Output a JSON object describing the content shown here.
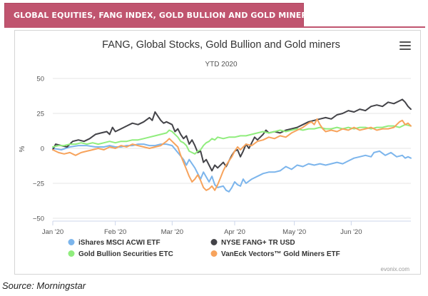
{
  "banner": {
    "title": "GLOBAL EQUITIES, FANG INDEX, GOLD BULLION AND GOLD MINERS YTD"
  },
  "source": "Source: Morningstar",
  "credit": "evonix.com",
  "menu_icon": "hamburger-menu-icon",
  "chart_data": {
    "type": "line",
    "title": "FANG, Global Stocks, Gold Bullion and Gold miners",
    "subtitle": "YTD 2020",
    "ylabel": "%",
    "xlabel": "",
    "ylim": [
      -50,
      50
    ],
    "yticks": [
      50,
      25,
      0,
      -25,
      -50
    ],
    "ytick_labels": [
      "50",
      "25",
      "0",
      "−25",
      "−50"
    ],
    "xlim": [
      0,
      126
    ],
    "xticks": [
      0,
      22,
      42,
      64,
      85,
      105
    ],
    "xtick_labels": [
      "Jan '20",
      "Feb '20",
      "Mar '20",
      "Apr '20",
      "May '20",
      "Jun '20"
    ],
    "grid": true,
    "legend_position": "bottom",
    "series": [
      {
        "name": "iShares MSCI ACWI ETF",
        "color": "#7cb5ec",
        "points": [
          [
            0,
            0
          ],
          [
            3,
            -1
          ],
          [
            6,
            1
          ],
          [
            9,
            2
          ],
          [
            12,
            2
          ],
          [
            15,
            1
          ],
          [
            18,
            1
          ],
          [
            20,
            2
          ],
          [
            22,
            1
          ],
          [
            24,
            1
          ],
          [
            26,
            2
          ],
          [
            28,
            2
          ],
          [
            30,
            3
          ],
          [
            32,
            3
          ],
          [
            34,
            2
          ],
          [
            36,
            2
          ],
          [
            38,
            3
          ],
          [
            40,
            3
          ],
          [
            42,
            2
          ],
          [
            44,
            -3
          ],
          [
            46,
            -8
          ],
          [
            47,
            -12
          ],
          [
            48,
            -8
          ],
          [
            50,
            -14
          ],
          [
            51,
            -18
          ],
          [
            52,
            -22
          ],
          [
            53,
            -17
          ],
          [
            55,
            -24
          ],
          [
            56,
            -20
          ],
          [
            57,
            -26
          ],
          [
            58,
            -28
          ],
          [
            60,
            -27
          ],
          [
            61,
            -30
          ],
          [
            62,
            -31
          ],
          [
            63,
            -28
          ],
          [
            64,
            -24
          ],
          [
            65,
            -26
          ],
          [
            66,
            -27
          ],
          [
            67,
            -22
          ],
          [
            68,
            -25
          ],
          [
            70,
            -22
          ],
          [
            72,
            -20
          ],
          [
            74,
            -18
          ],
          [
            76,
            -17
          ],
          [
            78,
            -17
          ],
          [
            80,
            -16
          ],
          [
            82,
            -13
          ],
          [
            84,
            -15
          ],
          [
            86,
            -12
          ],
          [
            88,
            -13
          ],
          [
            90,
            -11
          ],
          [
            92,
            -12
          ],
          [
            94,
            -11
          ],
          [
            96,
            -12
          ],
          [
            98,
            -11
          ],
          [
            100,
            -10
          ],
          [
            102,
            -11
          ],
          [
            104,
            -9
          ],
          [
            106,
            -7
          ],
          [
            108,
            -6
          ],
          [
            110,
            -5
          ],
          [
            112,
            -6
          ],
          [
            113,
            -3
          ],
          [
            115,
            -2
          ],
          [
            117,
            -5
          ],
          [
            119,
            -3
          ],
          [
            121,
            -6
          ],
          [
            123,
            -5
          ],
          [
            124,
            -7
          ],
          [
            125,
            -6
          ],
          [
            126,
            -7
          ]
        ]
      },
      {
        "name": "NYSE FANG+ TR USD",
        "color": "#434348",
        "points": [
          [
            0,
            -1
          ],
          [
            1,
            3
          ],
          [
            3,
            2
          ],
          [
            5,
            1
          ],
          [
            7,
            5
          ],
          [
            9,
            6
          ],
          [
            11,
            5
          ],
          [
            13,
            7
          ],
          [
            15,
            10
          ],
          [
            17,
            11
          ],
          [
            19,
            12
          ],
          [
            20,
            10
          ],
          [
            21,
            15
          ],
          [
            22,
            12
          ],
          [
            24,
            14
          ],
          [
            26,
            16
          ],
          [
            28,
            18
          ],
          [
            30,
            17
          ],
          [
            32,
            19
          ],
          [
            34,
            22
          ],
          [
            35,
            20
          ],
          [
            36,
            26
          ],
          [
            37,
            23
          ],
          [
            38,
            20
          ],
          [
            39,
            18
          ],
          [
            40,
            19
          ],
          [
            42,
            17
          ],
          [
            43,
            12
          ],
          [
            44,
            14
          ],
          [
            45,
            10
          ],
          [
            46,
            7
          ],
          [
            47,
            9
          ],
          [
            48,
            3
          ],
          [
            49,
            6
          ],
          [
            50,
            2
          ],
          [
            51,
            -3
          ],
          [
            52,
            -2
          ],
          [
            53,
            -10
          ],
          [
            54,
            -8
          ],
          [
            55,
            -12
          ],
          [
            56,
            -16
          ],
          [
            57,
            -12
          ],
          [
            58,
            -14
          ],
          [
            60,
            -10
          ],
          [
            61,
            -13
          ],
          [
            62,
            -9
          ],
          [
            63,
            -5
          ],
          [
            64,
            -2
          ],
          [
            65,
            -1
          ],
          [
            66,
            -6
          ],
          [
            67,
            -2
          ],
          [
            68,
            3
          ],
          [
            69,
            0
          ],
          [
            70,
            4
          ],
          [
            71,
            8
          ],
          [
            72,
            6
          ],
          [
            74,
            10
          ],
          [
            75,
            13
          ],
          [
            76,
            11
          ],
          [
            78,
            12
          ],
          [
            80,
            11
          ],
          [
            82,
            13
          ],
          [
            84,
            14
          ],
          [
            86,
            15
          ],
          [
            88,
            17
          ],
          [
            90,
            19
          ],
          [
            92,
            20
          ],
          [
            94,
            21
          ],
          [
            96,
            22
          ],
          [
            98,
            21
          ],
          [
            100,
            24
          ],
          [
            102,
            25
          ],
          [
            104,
            27
          ],
          [
            106,
            26
          ],
          [
            108,
            28
          ],
          [
            110,
            27
          ],
          [
            112,
            30
          ],
          [
            114,
            31
          ],
          [
            116,
            30
          ],
          [
            118,
            33
          ],
          [
            120,
            32
          ],
          [
            122,
            34
          ],
          [
            123,
            35
          ],
          [
            124,
            33
          ],
          [
            125,
            30
          ],
          [
            126,
            28
          ]
        ]
      },
      {
        "name": "Gold Bullion Securities ETC",
        "color": "#90ed7d",
        "points": [
          [
            0,
            1
          ],
          [
            2,
            2
          ],
          [
            4,
            2
          ],
          [
            6,
            3
          ],
          [
            8,
            3
          ],
          [
            10,
            4
          ],
          [
            12,
            3
          ],
          [
            14,
            4
          ],
          [
            16,
            3
          ],
          [
            18,
            4
          ],
          [
            20,
            5
          ],
          [
            22,
            4
          ],
          [
            24,
            5
          ],
          [
            26,
            5
          ],
          [
            28,
            6
          ],
          [
            30,
            6
          ],
          [
            32,
            7
          ],
          [
            34,
            8
          ],
          [
            36,
            9
          ],
          [
            38,
            10
          ],
          [
            40,
            11
          ],
          [
            41,
            13
          ],
          [
            42,
            12
          ],
          [
            43,
            10
          ],
          [
            44,
            8
          ],
          [
            45,
            5
          ],
          [
            46,
            4
          ],
          [
            47,
            2
          ],
          [
            48,
            -2
          ],
          [
            49,
            -3
          ],
          [
            50,
            -4
          ],
          [
            51,
            -2
          ],
          [
            52,
            -1
          ],
          [
            53,
            2
          ],
          [
            54,
            4
          ],
          [
            55,
            5
          ],
          [
            56,
            7
          ],
          [
            57,
            6
          ],
          [
            58,
            8
          ],
          [
            60,
            7
          ],
          [
            62,
            8
          ],
          [
            64,
            8
          ],
          [
            66,
            9
          ],
          [
            68,
            9
          ],
          [
            70,
            10
          ],
          [
            72,
            11
          ],
          [
            74,
            12
          ],
          [
            76,
            11
          ],
          [
            78,
            12
          ],
          [
            80,
            13
          ],
          [
            82,
            12
          ],
          [
            84,
            13
          ],
          [
            86,
            14
          ],
          [
            88,
            13
          ],
          [
            90,
            14
          ],
          [
            92,
            14
          ],
          [
            94,
            15
          ],
          [
            96,
            14
          ],
          [
            98,
            14
          ],
          [
            100,
            15
          ],
          [
            102,
            14
          ],
          [
            104,
            15
          ],
          [
            106,
            14
          ],
          [
            108,
            15
          ],
          [
            110,
            15
          ],
          [
            112,
            14
          ],
          [
            114,
            15
          ],
          [
            116,
            15
          ],
          [
            118,
            16
          ],
          [
            120,
            16
          ],
          [
            122,
            15
          ],
          [
            124,
            17
          ],
          [
            126,
            16
          ]
        ]
      },
      {
        "name": "VanEck Vectors™ Gold Miners ETF",
        "color": "#f7a35c",
        "points": [
          [
            0,
            -1
          ],
          [
            2,
            -3
          ],
          [
            4,
            -4
          ],
          [
            6,
            -3
          ],
          [
            8,
            -5
          ],
          [
            10,
            -3
          ],
          [
            12,
            -2
          ],
          [
            14,
            -1
          ],
          [
            16,
            0
          ],
          [
            18,
            -1
          ],
          [
            20,
            1
          ],
          [
            22,
            0
          ],
          [
            24,
            2
          ],
          [
            26,
            1
          ],
          [
            28,
            3
          ],
          [
            30,
            2
          ],
          [
            32,
            1
          ],
          [
            34,
            0
          ],
          [
            36,
            1
          ],
          [
            38,
            2
          ],
          [
            40,
            5
          ],
          [
            41,
            7
          ],
          [
            42,
            5
          ],
          [
            43,
            3
          ],
          [
            44,
            1
          ],
          [
            45,
            -5
          ],
          [
            46,
            -10
          ],
          [
            47,
            -15
          ],
          [
            48,
            -20
          ],
          [
            49,
            -24
          ],
          [
            50,
            -22
          ],
          [
            51,
            -19
          ],
          [
            52,
            -23
          ],
          [
            53,
            -28
          ],
          [
            54,
            -30
          ],
          [
            55,
            -29
          ],
          [
            56,
            -27
          ],
          [
            57,
            -30
          ],
          [
            58,
            -26
          ],
          [
            59,
            -21
          ],
          [
            60,
            -16
          ],
          [
            61,
            -12
          ],
          [
            62,
            -9
          ],
          [
            63,
            -6
          ],
          [
            64,
            -2
          ],
          [
            65,
            1
          ],
          [
            66,
            -1
          ],
          [
            68,
            3
          ],
          [
            70,
            2
          ],
          [
            72,
            5
          ],
          [
            74,
            6
          ],
          [
            76,
            8
          ],
          [
            78,
            7
          ],
          [
            80,
            9
          ],
          [
            82,
            8
          ],
          [
            84,
            11
          ],
          [
            86,
            13
          ],
          [
            88,
            15
          ],
          [
            90,
            18
          ],
          [
            91,
            19
          ],
          [
            92,
            17
          ],
          [
            93,
            21
          ],
          [
            94,
            17
          ],
          [
            95,
            14
          ],
          [
            96,
            12
          ],
          [
            98,
            13
          ],
          [
            100,
            12
          ],
          [
            102,
            14
          ],
          [
            104,
            13
          ],
          [
            106,
            15
          ],
          [
            108,
            13
          ],
          [
            110,
            14
          ],
          [
            112,
            15
          ],
          [
            114,
            13
          ],
          [
            116,
            14
          ],
          [
            118,
            14
          ],
          [
            120,
            15
          ],
          [
            122,
            19
          ],
          [
            123,
            20
          ],
          [
            124,
            17
          ],
          [
            125,
            18
          ],
          [
            126,
            16
          ]
        ]
      }
    ]
  }
}
